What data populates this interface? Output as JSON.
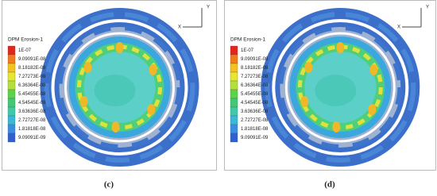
{
  "panels": [
    {
      "legend_title": "DPM Erosion-1",
      "legend": [
        {
          "label": "1E-07",
          "color": "#e3261b"
        },
        {
          "label": "9.09091E-08",
          "color": "#f07a1c"
        },
        {
          "label": "8.18182E-08",
          "color": "#f3c21f"
        },
        {
          "label": "7.27273E-08",
          "color": "#e6e632"
        },
        {
          "label": "6.36364E-08",
          "color": "#b5e03a"
        },
        {
          "label": "5.45455E-08",
          "color": "#5ed24a"
        },
        {
          "label": "4.54545E-08",
          "color": "#43c873"
        },
        {
          "label": "3.63636E-08",
          "color": "#3fc9a8"
        },
        {
          "label": "2.72727E-08",
          "color": "#3ab8d8"
        },
        {
          "label": "1.81818E-08",
          "color": "#3a8ee0"
        },
        {
          "label": "9.09091E-09",
          "color": "#2f5fd0"
        }
      ],
      "axis_x": "X",
      "axis_y": "Y",
      "caption": "(c)"
    },
    {
      "legend_title": "DPM Erosion-1",
      "legend": [
        {
          "label": "1E-07",
          "color": "#e3261b"
        },
        {
          "label": "9.09091E-08",
          "color": "#f07a1c"
        },
        {
          "label": "8.18182E-08",
          "color": "#f3c21f"
        },
        {
          "label": "7.27273E-08",
          "color": "#e6e632"
        },
        {
          "label": "6.36364E-08",
          "color": "#b5e03a"
        },
        {
          "label": "5.45455E-08",
          "color": "#5ed24a"
        },
        {
          "label": "4.54545E-08",
          "color": "#43c873"
        },
        {
          "label": "3.63636E-08",
          "color": "#3fc9a8"
        },
        {
          "label": "2.72727E-08",
          "color": "#3ab8d8"
        },
        {
          "label": "1.81818E-08",
          "color": "#3a8ee0"
        },
        {
          "label": "9.09091E-09",
          "color": "#2f5fd0"
        }
      ],
      "axis_x": "X",
      "axis_y": "Y",
      "caption": "(d)"
    }
  ]
}
